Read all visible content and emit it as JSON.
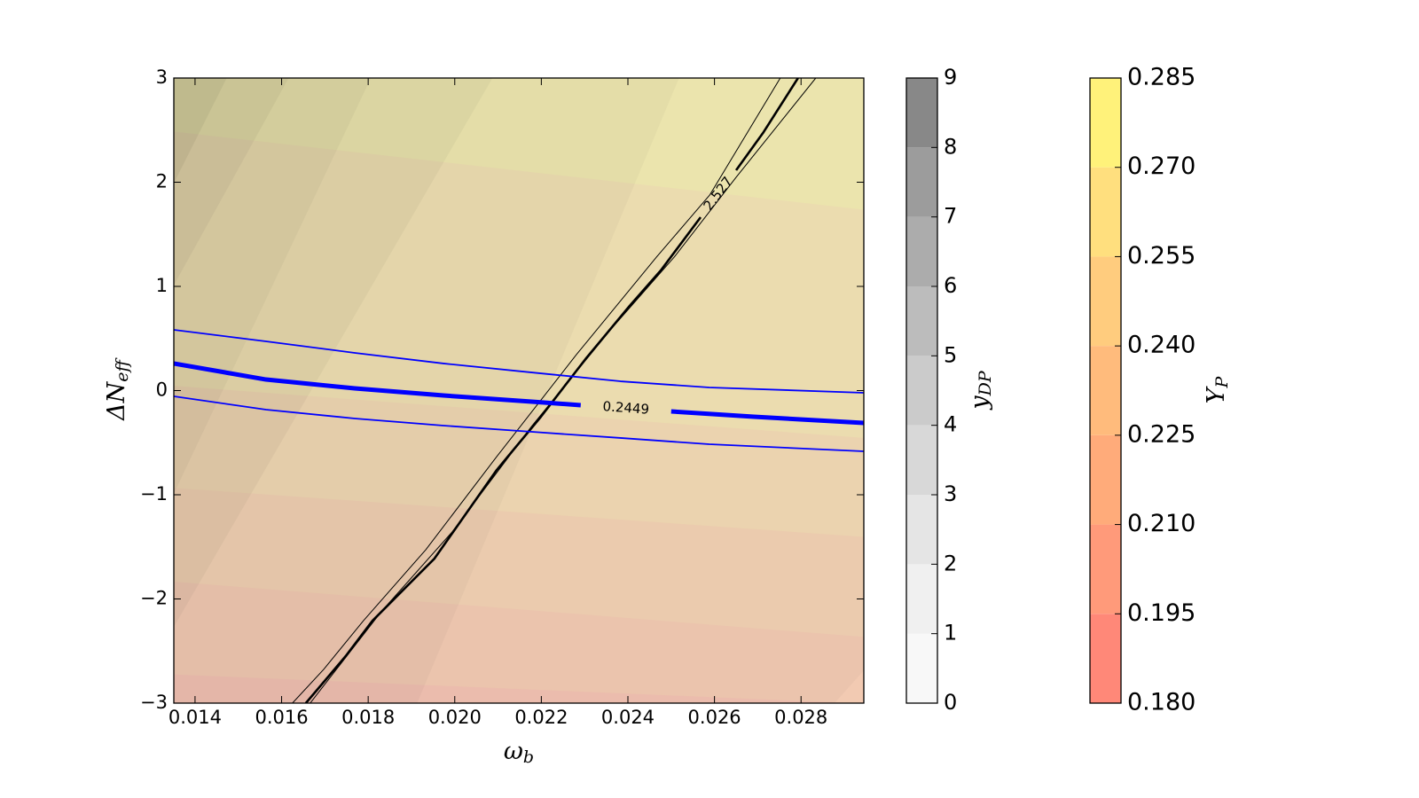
{
  "chart_data": {
    "type": "contour",
    "xlabel": {
      "base": "ω",
      "sub": "b"
    },
    "ylabel": {
      "base": "ΔN",
      "sub": "eff"
    },
    "xlim": [
      0.01351,
      0.02945
    ],
    "ylim": [
      -3,
      3
    ],
    "xticks": [
      0.014,
      0.016,
      0.018,
      {
        "value": 0.02,
        "label": "0.020"
      },
      0.022,
      0.024,
      0.026,
      0.028
    ],
    "yticks": [
      {
        "value": -3,
        "label": "−3"
      },
      {
        "value": -2,
        "label": "−2"
      },
      {
        "value": -1,
        "label": "−1"
      },
      0,
      1,
      2,
      3
    ],
    "colorbars": [
      {
        "label": {
          "base": "y",
          "sub": "DP"
        },
        "ticks": [
          0,
          1,
          2,
          3,
          4,
          5,
          6,
          7,
          8,
          9
        ],
        "colors": [
          "#f8f8f8",
          "#f0f0f0",
          "#e5e5e5",
          "#d8d8d8",
          "#cbcbcb",
          "#bcbcbc",
          "#acacac",
          "#9c9c9c",
          "#888888"
        ],
        "boundaries": [
          {
            "level": 3,
            "x": [
              0.02876,
              0.02945
            ],
            "y": [
              -3,
              -2.68
            ]
          },
          {
            "level": 4,
            "x": [
              0.01912,
              0.02517
            ],
            "y": [
              -3,
              3
            ]
          },
          {
            "level": 5,
            "x": [
              0.01351,
              0.02086
            ],
            "y": [
              -2.26,
              3
            ]
          },
          {
            "level": 6,
            "x": [
              0.01351,
              0.01805
            ],
            "y": [
              -0.98,
              3
            ]
          },
          {
            "level": 7,
            "x": [
              0.01351,
              0.01615
            ],
            "y": [
              1.02,
              3
            ]
          },
          {
            "level": 8,
            "x": [
              0.01351,
              0.01472
            ],
            "y": [
              2.0,
              3
            ]
          }
        ]
      },
      {
        "label": {
          "base": "Y",
          "sub": "P"
        },
        "ticks": [
          {
            "value": 0.18,
            "label": "0.180"
          },
          0.195,
          {
            "value": 0.21,
            "label": "0.210"
          },
          0.225,
          {
            "value": 0.24,
            "label": "0.240"
          },
          0.255,
          {
            "value": 0.27,
            "label": "0.270"
          },
          0.285
        ],
        "colors": [
          "#ff8878",
          "#ff9a7a",
          "#ffab7a",
          "#ffbb7c",
          "#ffcc7e",
          "#ffdf7e",
          "#fff27a"
        ],
        "boundaries": [
          {
            "level": 0.21,
            "x": [
              0.01351,
              0.02945
            ],
            "y": [
              -2.72,
              -3.0
            ]
          },
          {
            "level": 0.225,
            "x": [
              0.01351,
              0.02945
            ],
            "y": [
              -1.83,
              -2.36
            ]
          },
          {
            "level": 0.24,
            "x": [
              0.01351,
              0.02945
            ],
            "y": [
              -0.93,
              -1.4
            ]
          },
          {
            "level": 0.255,
            "x": [
              0.01351,
              0.02945
            ],
            "y": [
              0.05,
              -0.45
            ]
          },
          {
            "level": 0.27,
            "x": [
              0.01351,
              0.02945
            ],
            "y": [
              2.49,
              1.74
            ]
          }
        ]
      }
    ],
    "lines": [
      {
        "color": "#000000",
        "width": 1,
        "x": [
          0.01625,
          0.01697,
          0.01789,
          0.01933,
          0.02097,
          0.02281,
          0.02466,
          0.02589,
          0.02752
        ],
        "y": [
          -3,
          -2.677,
          -2.209,
          -1.528,
          -0.634,
          0.345,
          1.281,
          1.877,
          3
        ]
      },
      {
        "color": "#000000",
        "width": 1,
        "x": [
          0.01666,
          0.0183,
          0.01994,
          0.02179,
          0.02363,
          0.02507,
          0.0265,
          0.02834
        ],
        "y": [
          -3,
          -2.123,
          -1.357,
          -0.336,
          0.6,
          1.281,
          2.047,
          3
        ]
      },
      {
        "color": "#000000",
        "width": 2.6,
        "label": "2.527",
        "x": [
          0.01656,
          0.01748,
          0.0181,
          0.01953,
          0.02097,
          0.02199,
          0.02302,
          0.02404,
          0.02476,
          0.02568,
          null,
          0.0265,
          0.02712,
          0.02793
        ],
        "y": [
          -3,
          -2.549,
          -2.209,
          -1.613,
          -0.762,
          -0.251,
          0.302,
          0.813,
          1.153,
          1.664,
          null,
          2.115,
          2.472,
          3
        ]
      },
      {
        "color": "#0000ff",
        "width": 1.8,
        "x": [
          0.01351,
          0.01564,
          0.01769,
          0.01974,
          0.02178,
          0.02383,
          0.02588,
          0.02945
        ],
        "y": [
          0.583,
          0.472,
          0.362,
          0.26,
          0.174,
          0.089,
          0.03,
          -0.021
        ]
      },
      {
        "color": "#0000ff",
        "width": 1.8,
        "x": [
          0.01351,
          0.01564,
          0.01769,
          0.01974,
          0.02178,
          0.02383,
          0.02588,
          0.02945
        ],
        "y": [
          -0.055,
          -0.183,
          -0.268,
          -0.336,
          -0.396,
          -0.455,
          -0.515,
          -0.583
        ]
      },
      {
        "color": "#0000ff",
        "width": 5,
        "label": "0.2449",
        "x": [
          0.01351,
          0.01564,
          0.01769,
          0.01974,
          0.02178,
          0.02291,
          null,
          0.025,
          0.02691,
          0.02945
        ],
        "y": [
          0.26,
          0.106,
          0.021,
          -0.047,
          -0.106,
          -0.14,
          null,
          -0.2,
          -0.251,
          -0.311
        ]
      }
    ]
  }
}
